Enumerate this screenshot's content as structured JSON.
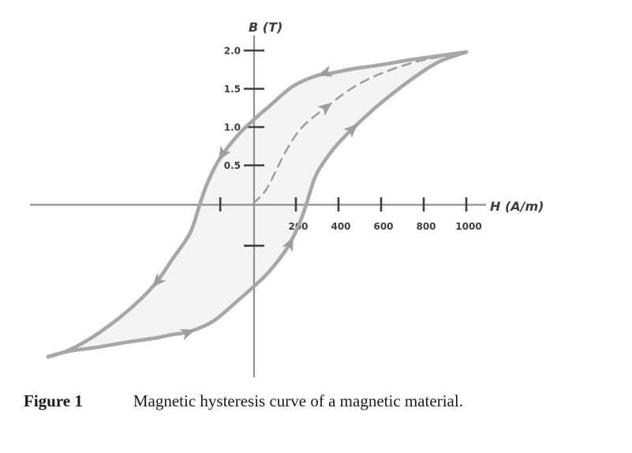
{
  "figure": {
    "label": "Figure 1",
    "caption": "Magnetic hysteresis curve of a magnetic material."
  },
  "chart_data": {
    "type": "line",
    "title": "",
    "xlabel": "H (A/m)",
    "ylabel": "B (T)",
    "grid": false,
    "legend": "none",
    "axis_range": {
      "x": [
        -1045,
        1095
      ],
      "y": [
        -2.26,
        2.2
      ]
    },
    "x_ticks": [
      200,
      400,
      600,
      800,
      1000
    ],
    "x_tick_labels": [
      "200",
      "400",
      "600",
      "800",
      "1000"
    ],
    "y_ticks": [
      0.5,
      1.0,
      1.5,
      2.0
    ],
    "y_tick_labels": [
      "0.5",
      "1.0",
      "1.5",
      "2.0"
    ],
    "unlabeled_ticks": {
      "x": [
        -155
      ],
      "y": [
        -0.55
      ]
    },
    "colors": {
      "curve": "#a7a7a7",
      "dashed": "#a0a0a0",
      "arrow": "#9d9d9d",
      "axis": "#8f8f8f",
      "tick": "#3f3f3f",
      "tick_label": "#3f3f3f",
      "axis_label": "#3f3f3f",
      "loop_fill": "#f4f4f4",
      "background": "#ffffff"
    },
    "series": [
      {
        "name": "initial-magnetization-curve",
        "line_style": "dashed",
        "arrow_positions": [
          0.47
        ],
        "points": [
          [
            0,
            0
          ],
          [
            60,
            0.18
          ],
          [
            110,
            0.45
          ],
          [
            160,
            0.72
          ],
          [
            230,
            1.0
          ],
          [
            352,
            1.28
          ],
          [
            470,
            1.52
          ],
          [
            600,
            1.7
          ],
          [
            760,
            1.85
          ],
          [
            880,
            1.92
          ],
          [
            1000,
            1.98
          ]
        ]
      },
      {
        "name": "descending-branch",
        "line_style": "solid",
        "arrow_positions": [
          0.27,
          0.51,
          0.77
        ],
        "points": [
          [
            1000,
            1.98
          ],
          [
            870,
            1.93
          ],
          [
            741,
            1.88
          ],
          [
            593,
            1.81
          ],
          [
            467,
            1.76
          ],
          [
            378,
            1.71
          ],
          [
            296,
            1.67
          ],
          [
            185,
            1.53
          ],
          [
            74,
            1.27
          ],
          [
            0,
            1.09
          ],
          [
            -74,
            0.89
          ],
          [
            -159,
            0.58
          ],
          [
            -215,
            0.27
          ],
          [
            -250,
            0.0
          ],
          [
            -296,
            -0.38
          ],
          [
            -378,
            -0.72
          ],
          [
            -467,
            -1.07
          ],
          [
            -593,
            -1.41
          ],
          [
            -741,
            -1.72
          ],
          [
            -870,
            -1.92
          ],
          [
            -963,
            -2.0
          ]
        ]
      },
      {
        "name": "ascending-branch",
        "line_style": "solid",
        "arrow_positions": [
          0.27,
          0.52,
          0.76
        ],
        "points": [
          [
            -963,
            -2.0
          ],
          [
            -870,
            -1.93
          ],
          [
            -741,
            -1.88
          ],
          [
            -593,
            -1.81
          ],
          [
            -467,
            -1.76
          ],
          [
            -378,
            -1.71
          ],
          [
            -296,
            -1.67
          ],
          [
            -185,
            -1.53
          ],
          [
            -74,
            -1.27
          ],
          [
            0,
            -1.09
          ],
          [
            74,
            -0.89
          ],
          [
            159,
            -0.58
          ],
          [
            215,
            -0.27
          ],
          [
            250,
            0.0
          ],
          [
            296,
            0.38
          ],
          [
            378,
            0.72
          ],
          [
            467,
            0.98
          ],
          [
            593,
            1.3
          ],
          [
            741,
            1.62
          ],
          [
            870,
            1.85
          ],
          [
            1000,
            1.98
          ]
        ]
      }
    ]
  }
}
